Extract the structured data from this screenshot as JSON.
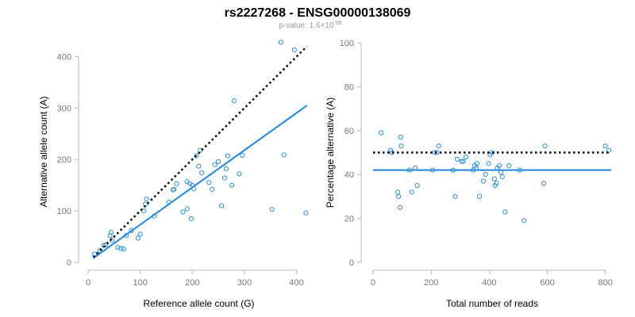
{
  "title": "rs2227268 - ENSG00000138069",
  "subtitle": {
    "prefix": "p-value: 1.6",
    "times": "×",
    "base": "10",
    "exponent": "-98"
  },
  "colors": {
    "points": "#2a8fd6",
    "fit_line": "#1e88e5",
    "reference_line": "#000000",
    "axis": "#b5b5b5",
    "tick_text": "#777777"
  },
  "chart_data": [
    {
      "type": "scatter",
      "xlabel": "Reference allele count (G)",
      "ylabel": "Alternative allele count (A)",
      "xlim": [
        0,
        425
      ],
      "ylim": [
        0,
        430
      ],
      "xticks": [
        0,
        100,
        200,
        300,
        400
      ],
      "yticks": [
        0,
        100,
        200,
        300,
        400
      ],
      "grid": false,
      "points": [
        {
          "x": 12,
          "y": 16
        },
        {
          "x": 23,
          "y": 23
        },
        {
          "x": 30,
          "y": 33
        },
        {
          "x": 34,
          "y": 34
        },
        {
          "x": 42,
          "y": 52
        },
        {
          "x": 44,
          "y": 58
        },
        {
          "x": 46,
          "y": 43
        },
        {
          "x": 57,
          "y": 29
        },
        {
          "x": 63,
          "y": 27
        },
        {
          "x": 68,
          "y": 26
        },
        {
          "x": 73,
          "y": 52
        },
        {
          "x": 83,
          "y": 62
        },
        {
          "x": 96,
          "y": 47
        },
        {
          "x": 100,
          "y": 55
        },
        {
          "x": 107,
          "y": 100
        },
        {
          "x": 110,
          "y": 113
        },
        {
          "x": 112,
          "y": 123
        },
        {
          "x": 127,
          "y": 90
        },
        {
          "x": 155,
          "y": 117
        },
        {
          "x": 163,
          "y": 141
        },
        {
          "x": 165,
          "y": 142
        },
        {
          "x": 170,
          "y": 153
        },
        {
          "x": 182,
          "y": 98
        },
        {
          "x": 190,
          "y": 104
        },
        {
          "x": 190,
          "y": 157
        },
        {
          "x": 195,
          "y": 153
        },
        {
          "x": 198,
          "y": 85
        },
        {
          "x": 200,
          "y": 150
        },
        {
          "x": 203,
          "y": 143
        },
        {
          "x": 208,
          "y": 207
        },
        {
          "x": 212,
          "y": 187
        },
        {
          "x": 215,
          "y": 218
        },
        {
          "x": 218,
          "y": 174
        },
        {
          "x": 232,
          "y": 155
        },
        {
          "x": 238,
          "y": 142
        },
        {
          "x": 243,
          "y": 190
        },
        {
          "x": 250,
          "y": 196
        },
        {
          "x": 256,
          "y": 110
        },
        {
          "x": 262,
          "y": 164
        },
        {
          "x": 265,
          "y": 182
        },
        {
          "x": 268,
          "y": 207
        },
        {
          "x": 276,
          "y": 150
        },
        {
          "x": 280,
          "y": 314
        },
        {
          "x": 290,
          "y": 172
        },
        {
          "x": 296,
          "y": 208
        },
        {
          "x": 353,
          "y": 103
        },
        {
          "x": 370,
          "y": 428
        },
        {
          "x": 376,
          "y": 209
        },
        {
          "x": 396,
          "y": 413
        },
        {
          "x": 418,
          "y": 96
        }
      ],
      "fit_line": {
        "x": [
          10,
          420
        ],
        "y": [
          8,
          305
        ]
      },
      "reference_line": {
        "x": [
          10,
          420
        ],
        "y": [
          10,
          420
        ]
      }
    },
    {
      "type": "scatter",
      "xlabel": "Total number of reads",
      "ylabel": "Percentage alternative (A)",
      "xlim": [
        0,
        820
      ],
      "ylim": [
        0,
        100
      ],
      "xticks": [
        0,
        200,
        400,
        600,
        800
      ],
      "yticks": [
        0,
        20,
        40,
        60,
        80,
        100
      ],
      "grid": false,
      "points": [
        {
          "x": 28,
          "y": 59
        },
        {
          "x": 60,
          "y": 51
        },
        {
          "x": 64,
          "y": 50
        },
        {
          "x": 85,
          "y": 32
        },
        {
          "x": 88,
          "y": 30
        },
        {
          "x": 93,
          "y": 25
        },
        {
          "x": 95,
          "y": 57
        },
        {
          "x": 97,
          "y": 53
        },
        {
          "x": 125,
          "y": 42
        },
        {
          "x": 133,
          "y": 32
        },
        {
          "x": 145,
          "y": 43
        },
        {
          "x": 152,
          "y": 35
        },
        {
          "x": 205,
          "y": 42
        },
        {
          "x": 212,
          "y": 50
        },
        {
          "x": 220,
          "y": 50
        },
        {
          "x": 226,
          "y": 53
        },
        {
          "x": 275,
          "y": 42
        },
        {
          "x": 283,
          "y": 30
        },
        {
          "x": 290,
          "y": 47
        },
        {
          "x": 305,
          "y": 46
        },
        {
          "x": 310,
          "y": 46
        },
        {
          "x": 320,
          "y": 48
        },
        {
          "x": 345,
          "y": 42
        },
        {
          "x": 350,
          "y": 44
        },
        {
          "x": 355,
          "y": 43
        },
        {
          "x": 358,
          "y": 45
        },
        {
          "x": 366,
          "y": 30
        },
        {
          "x": 380,
          "y": 37
        },
        {
          "x": 387,
          "y": 40
        },
        {
          "x": 398,
          "y": 45
        },
        {
          "x": 403,
          "y": 49
        },
        {
          "x": 410,
          "y": 50
        },
        {
          "x": 418,
          "y": 38
        },
        {
          "x": 420,
          "y": 35
        },
        {
          "x": 425,
          "y": 36
        },
        {
          "x": 428,
          "y": 43
        },
        {
          "x": 435,
          "y": 44
        },
        {
          "x": 440,
          "y": 41
        },
        {
          "x": 445,
          "y": 39
        },
        {
          "x": 455,
          "y": 23
        },
        {
          "x": 468,
          "y": 44
        },
        {
          "x": 505,
          "y": 42
        },
        {
          "x": 520,
          "y": 19
        },
        {
          "x": 588,
          "y": 36
        },
        {
          "x": 592,
          "y": 53
        },
        {
          "x": 800,
          "y": 53
        },
        {
          "x": 812,
          "y": 51
        }
      ],
      "fit_line": {
        "x": [
          0,
          820
        ],
        "y": [
          42,
          42
        ]
      },
      "reference_line": {
        "x": [
          0,
          820
        ],
        "y": [
          50,
          50
        ]
      }
    }
  ]
}
